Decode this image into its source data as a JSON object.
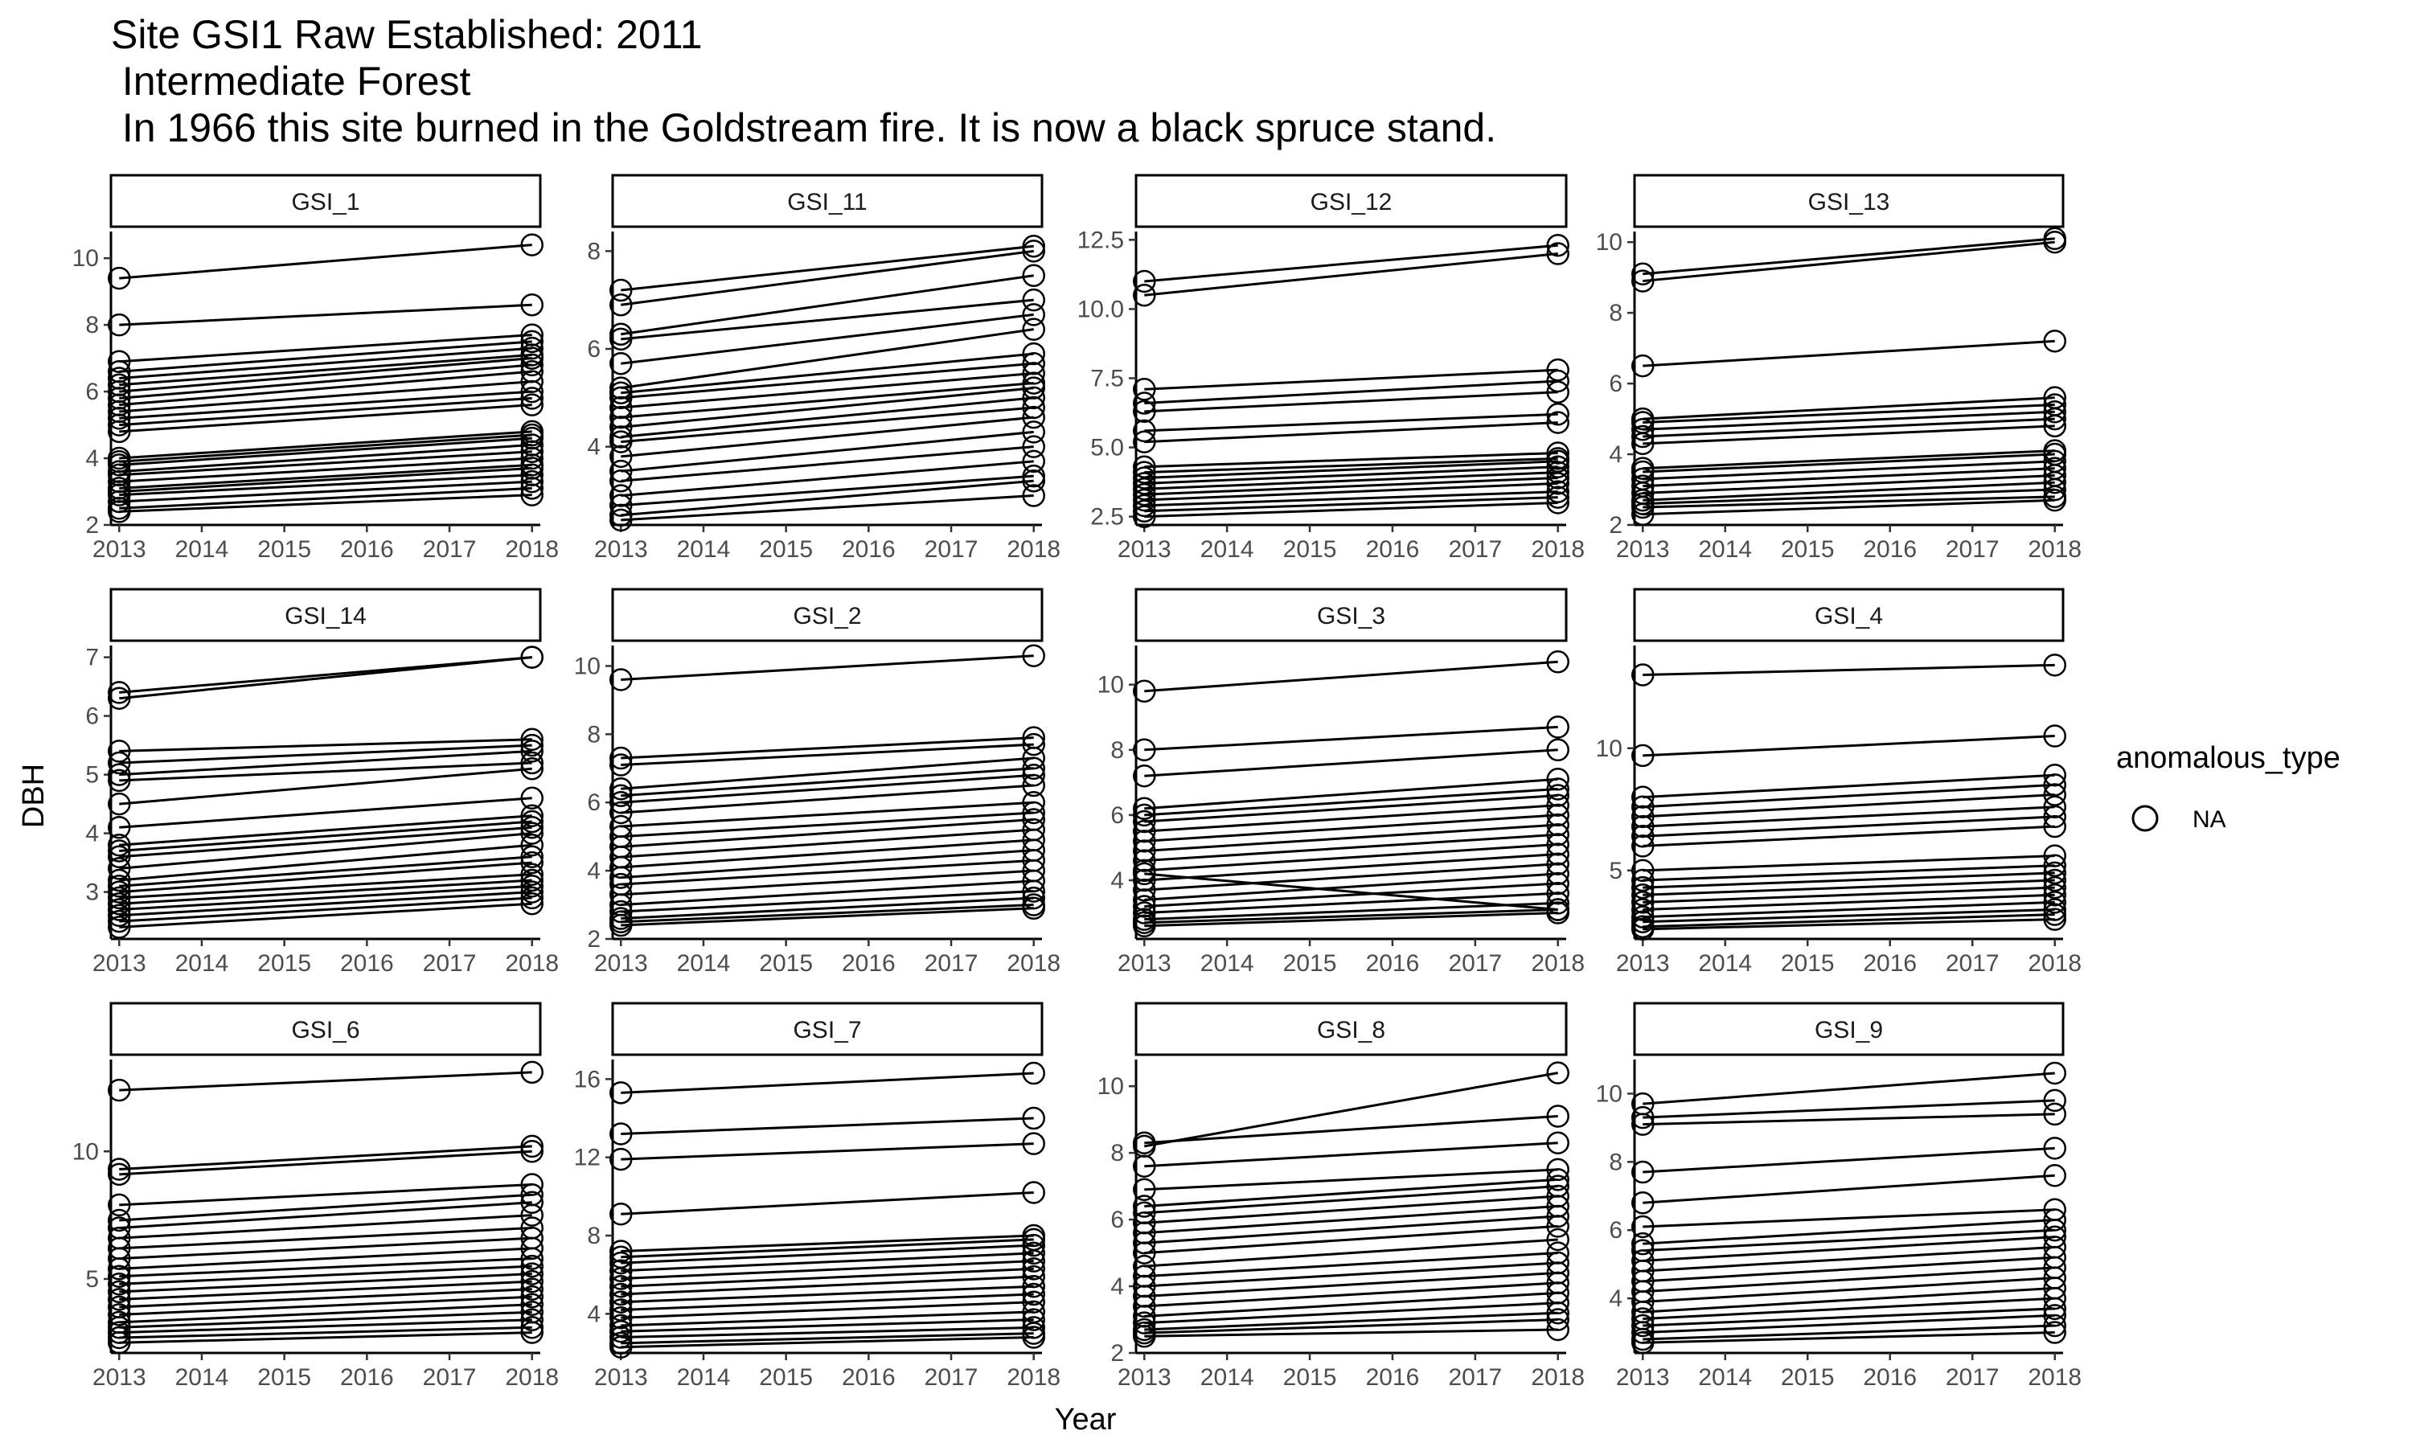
{
  "chart_data": {
    "type": "line",
    "title": "Site GSI1 Raw Established: 2011",
    "subtitle_lines": [
      " Intermediate Forest",
      " In 1966 this site burned in the Goldstream fire. It is now a black spruce stand."
    ],
    "xlabel": "Year",
    "ylabel": "DBH",
    "x_ticks": [
      2013,
      2014,
      2015,
      2016,
      2017,
      2018
    ],
    "xlim": [
      2012.9,
      2018.1
    ],
    "legend": {
      "title": "anomalous_type",
      "entries": [
        "NA"
      ],
      "placement": "right",
      "marker": "open-circle"
    },
    "grid": false,
    "panels": [
      {
        "label": "GSI_1",
        "ylim": [
          2,
          10.8
        ],
        "y_ticks": [
          2,
          4,
          6,
          8,
          10
        ],
        "y_tick_labels": [
          "2",
          "4",
          "6",
          "8",
          "10"
        ],
        "series": [
          [
            9.4,
            10.4
          ],
          [
            8.0,
            8.6
          ],
          [
            6.9,
            7.7
          ],
          [
            6.6,
            7.5
          ],
          [
            6.4,
            7.3
          ],
          [
            6.2,
            7.1
          ],
          [
            6.0,
            7.0
          ],
          [
            5.8,
            6.8
          ],
          [
            5.6,
            6.6
          ],
          [
            5.4,
            6.3
          ],
          [
            5.2,
            6.0
          ],
          [
            5.0,
            5.8
          ],
          [
            4.8,
            5.6
          ],
          [
            4.0,
            4.8
          ],
          [
            3.9,
            4.7
          ],
          [
            3.8,
            4.6
          ],
          [
            3.6,
            4.4
          ],
          [
            3.5,
            4.2
          ],
          [
            3.3,
            4.0
          ],
          [
            3.1,
            3.8
          ],
          [
            3.0,
            3.7
          ],
          [
            2.9,
            3.5
          ],
          [
            2.7,
            3.3
          ],
          [
            2.5,
            3.1
          ],
          [
            2.4,
            2.9
          ]
        ]
      },
      {
        "label": "GSI_11",
        "ylim": [
          2.4,
          8.4
        ],
        "y_ticks": [
          4,
          6,
          8
        ],
        "y_tick_labels": [
          "4",
          "6",
          "8"
        ],
        "series": [
          [
            7.2,
            8.1
          ],
          [
            6.9,
            8.0
          ],
          [
            6.3,
            7.5
          ],
          [
            6.2,
            7.0
          ],
          [
            5.7,
            6.7
          ],
          [
            5.2,
            6.4
          ],
          [
            5.1,
            5.9
          ],
          [
            5.0,
            5.7
          ],
          [
            4.8,
            5.5
          ],
          [
            4.6,
            5.3
          ],
          [
            4.4,
            5.2
          ],
          [
            4.2,
            5.0
          ],
          [
            4.1,
            4.8
          ],
          [
            3.8,
            4.6
          ],
          [
            3.5,
            4.3
          ],
          [
            3.3,
            4.0
          ],
          [
            3.0,
            3.7
          ],
          [
            2.8,
            3.4
          ],
          [
            2.6,
            3.3
          ],
          [
            2.5,
            3.0
          ]
        ]
      },
      {
        "label": "GSI_12",
        "ylim": [
          2.2,
          12.8
        ],
        "y_ticks": [
          2.5,
          5.0,
          7.5,
          10.0,
          12.5
        ],
        "y_tick_labels": [
          "2.5",
          "5.0",
          "7.5",
          "10.0",
          "12.5"
        ],
        "series": [
          [
            11.0,
            12.3
          ],
          [
            10.5,
            12.0
          ],
          [
            7.1,
            7.8
          ],
          [
            6.6,
            7.4
          ],
          [
            6.3,
            7.0
          ],
          [
            5.6,
            6.2
          ],
          [
            5.2,
            5.9
          ],
          [
            4.3,
            4.8
          ],
          [
            4.1,
            4.6
          ],
          [
            3.9,
            4.5
          ],
          [
            3.7,
            4.3
          ],
          [
            3.5,
            4.1
          ],
          [
            3.3,
            3.9
          ],
          [
            3.1,
            3.7
          ],
          [
            2.9,
            3.4
          ],
          [
            2.7,
            3.2
          ],
          [
            2.5,
            3.0
          ]
        ]
      },
      {
        "label": "GSI_13",
        "ylim": [
          2,
          10.3
        ],
        "y_ticks": [
          2,
          4,
          6,
          8,
          10
        ],
        "y_tick_labels": [
          "2",
          "4",
          "6",
          "8",
          "10"
        ],
        "series": [
          [
            9.1,
            10.1
          ],
          [
            8.9,
            10.0
          ],
          [
            6.5,
            7.2
          ],
          [
            5.0,
            5.6
          ],
          [
            4.9,
            5.4
          ],
          [
            4.7,
            5.2
          ],
          [
            4.5,
            5.0
          ],
          [
            4.3,
            4.8
          ],
          [
            3.6,
            4.1
          ],
          [
            3.5,
            4.0
          ],
          [
            3.3,
            3.8
          ],
          [
            3.1,
            3.6
          ],
          [
            2.9,
            3.4
          ],
          [
            2.7,
            3.2
          ],
          [
            2.6,
            3.0
          ],
          [
            2.5,
            2.8
          ],
          [
            2.3,
            2.7
          ]
        ]
      },
      {
        "label": "GSI_14",
        "ylim": [
          2.2,
          7.2
        ],
        "y_ticks": [
          3,
          4,
          5,
          6,
          7
        ],
        "y_tick_labels": [
          "3",
          "4",
          "5",
          "6",
          "7"
        ],
        "series": [
          [
            6.4,
            7.0
          ],
          [
            6.3,
            7.0
          ],
          [
            5.4,
            5.6
          ],
          [
            5.2,
            5.5
          ],
          [
            5.0,
            5.4
          ],
          [
            4.9,
            5.2
          ],
          [
            4.5,
            5.1
          ],
          [
            4.1,
            4.6
          ],
          [
            3.8,
            4.3
          ],
          [
            3.7,
            4.2
          ],
          [
            3.6,
            4.1
          ],
          [
            3.4,
            4.0
          ],
          [
            3.2,
            3.8
          ],
          [
            3.1,
            3.6
          ],
          [
            3.0,
            3.5
          ],
          [
            2.9,
            3.3
          ],
          [
            2.8,
            3.2
          ],
          [
            2.7,
            3.1
          ],
          [
            2.6,
            3.0
          ],
          [
            2.5,
            2.9
          ],
          [
            2.4,
            2.8
          ]
        ]
      },
      {
        "label": "GSI_2",
        "ylim": [
          2,
          10.6
        ],
        "y_ticks": [
          2,
          4,
          6,
          8,
          10
        ],
        "y_tick_labels": [
          "2",
          "4",
          "6",
          "8",
          "10"
        ],
        "series": [
          [
            9.6,
            10.3
          ],
          [
            7.3,
            7.9
          ],
          [
            7.1,
            7.7
          ],
          [
            6.4,
            7.3
          ],
          [
            6.2,
            7.0
          ],
          [
            6.0,
            6.8
          ],
          [
            5.7,
            6.5
          ],
          [
            5.3,
            6.0
          ],
          [
            5.0,
            5.7
          ],
          [
            4.7,
            5.5
          ],
          [
            4.4,
            5.2
          ],
          [
            4.1,
            4.9
          ],
          [
            3.8,
            4.6
          ],
          [
            3.6,
            4.3
          ],
          [
            3.3,
            4.0
          ],
          [
            3.0,
            3.7
          ],
          [
            2.8,
            3.4
          ],
          [
            2.6,
            3.2
          ],
          [
            2.5,
            3.0
          ],
          [
            2.4,
            2.9
          ]
        ]
      },
      {
        "label": "GSI_3",
        "ylim": [
          2.2,
          11.2
        ],
        "y_ticks": [
          4,
          6,
          8,
          10
        ],
        "y_tick_labels": [
          "4",
          "6",
          "8",
          "10"
        ],
        "series": [
          [
            9.8,
            10.7
          ],
          [
            8.0,
            8.7
          ],
          [
            7.2,
            8.0
          ],
          [
            6.2,
            7.1
          ],
          [
            6.0,
            6.8
          ],
          [
            5.8,
            6.6
          ],
          [
            5.5,
            6.3
          ],
          [
            5.2,
            6.0
          ],
          [
            4.9,
            5.7
          ],
          [
            4.6,
            5.4
          ],
          [
            4.3,
            5.1
          ],
          [
            4.0,
            4.8
          ],
          [
            3.7,
            4.5
          ],
          [
            3.4,
            4.2
          ],
          [
            3.2,
            3.9
          ],
          [
            3.0,
            3.6
          ],
          [
            2.8,
            3.3
          ],
          [
            2.7,
            3.1
          ],
          [
            2.6,
            3.0
          ],
          [
            4.2,
            3.1
          ]
        ]
      },
      {
        "label": "GSI_4",
        "ylim": [
          2.2,
          14.2
        ],
        "y_ticks": [
          5,
          10
        ],
        "y_tick_labels": [
          "5",
          "10"
        ],
        "series": [
          [
            13.0,
            13.4
          ],
          [
            9.7,
            10.5
          ],
          [
            8.0,
            8.9
          ],
          [
            7.6,
            8.5
          ],
          [
            7.2,
            8.1
          ],
          [
            6.8,
            7.6
          ],
          [
            6.4,
            7.2
          ],
          [
            6.0,
            6.8
          ],
          [
            5.0,
            5.6
          ],
          [
            4.6,
            5.2
          ],
          [
            4.3,
            4.9
          ],
          [
            4.0,
            4.6
          ],
          [
            3.7,
            4.3
          ],
          [
            3.4,
            4.0
          ],
          [
            3.1,
            3.7
          ],
          [
            2.9,
            3.4
          ],
          [
            2.7,
            3.2
          ],
          [
            2.6,
            3.0
          ]
        ]
      },
      {
        "label": "GSI_6",
        "ylim": [
          2.1,
          13.6
        ],
        "y_ticks": [
          5,
          10
        ],
        "y_tick_labels": [
          "5",
          "10"
        ],
        "series": [
          [
            12.4,
            13.1
          ],
          [
            9.3,
            10.2
          ],
          [
            9.1,
            10.0
          ],
          [
            7.9,
            8.7
          ],
          [
            7.3,
            8.3
          ],
          [
            7.0,
            8.0
          ],
          [
            6.6,
            7.5
          ],
          [
            6.2,
            7.0
          ],
          [
            5.8,
            6.6
          ],
          [
            5.4,
            6.2
          ],
          [
            5.1,
            5.8
          ],
          [
            4.8,
            5.5
          ],
          [
            4.5,
            5.2
          ],
          [
            4.2,
            4.9
          ],
          [
            3.9,
            4.6
          ],
          [
            3.6,
            4.3
          ],
          [
            3.3,
            4.0
          ],
          [
            3.1,
            3.7
          ],
          [
            2.9,
            3.4
          ],
          [
            2.7,
            3.1
          ],
          [
            2.5,
            2.9
          ]
        ]
      },
      {
        "label": "GSI_7",
        "ylim": [
          2,
          17
        ],
        "y_ticks": [
          4,
          8,
          12,
          16
        ],
        "y_tick_labels": [
          "4",
          "8",
          "12",
          "16"
        ],
        "series": [
          [
            15.3,
            16.3
          ],
          [
            13.2,
            14.0
          ],
          [
            11.9,
            12.7
          ],
          [
            9.1,
            10.2
          ],
          [
            7.2,
            8.0
          ],
          [
            6.9,
            7.8
          ],
          [
            6.6,
            7.5
          ],
          [
            6.2,
            7.1
          ],
          [
            5.8,
            6.7
          ],
          [
            5.4,
            6.3
          ],
          [
            5.0,
            5.9
          ],
          [
            4.6,
            5.4
          ],
          [
            4.2,
            5.0
          ],
          [
            3.8,
            4.6
          ],
          [
            3.4,
            4.1
          ],
          [
            3.1,
            3.7
          ],
          [
            2.8,
            3.3
          ],
          [
            2.5,
            3.0
          ],
          [
            2.3,
            2.8
          ]
        ]
      },
      {
        "label": "GSI_8",
        "ylim": [
          2,
          10.8
        ],
        "y_ticks": [
          2,
          4,
          6,
          8,
          10
        ],
        "y_tick_labels": [
          "2",
          "4",
          "6",
          "8",
          "10"
        ],
        "series": [
          [
            8.2,
            10.4
          ],
          [
            8.3,
            9.1
          ],
          [
            7.6,
            8.3
          ],
          [
            6.9,
            7.5
          ],
          [
            6.4,
            7.2
          ],
          [
            6.2,
            7.0
          ],
          [
            5.9,
            6.7
          ],
          [
            5.6,
            6.4
          ],
          [
            5.3,
            6.1
          ],
          [
            5.0,
            5.8
          ],
          [
            4.6,
            5.4
          ],
          [
            4.3,
            5.0
          ],
          [
            4.0,
            4.7
          ],
          [
            3.7,
            4.4
          ],
          [
            3.4,
            4.1
          ],
          [
            3.1,
            3.8
          ],
          [
            2.9,
            3.5
          ],
          [
            2.7,
            3.2
          ],
          [
            2.6,
            3.0
          ],
          [
            2.5,
            2.7
          ]
        ]
      },
      {
        "label": "GSI_9",
        "ylim": [
          2.4,
          11.0
        ],
        "y_ticks": [
          4,
          6,
          8,
          10
        ],
        "y_tick_labels": [
          "4",
          "6",
          "8",
          "10"
        ],
        "series": [
          [
            9.7,
            10.6
          ],
          [
            9.3,
            9.8
          ],
          [
            9.1,
            9.4
          ],
          [
            7.7,
            8.4
          ],
          [
            6.8,
            7.6
          ],
          [
            6.1,
            6.6
          ],
          [
            5.6,
            6.3
          ],
          [
            5.4,
            6.0
          ],
          [
            5.1,
            5.8
          ],
          [
            4.8,
            5.5
          ],
          [
            4.5,
            5.2
          ],
          [
            4.2,
            4.9
          ],
          [
            3.9,
            4.6
          ],
          [
            3.6,
            4.3
          ],
          [
            3.4,
            4.0
          ],
          [
            3.2,
            3.7
          ],
          [
            3.0,
            3.5
          ],
          [
            2.8,
            3.2
          ],
          [
            2.7,
            3.0
          ]
        ]
      }
    ]
  }
}
